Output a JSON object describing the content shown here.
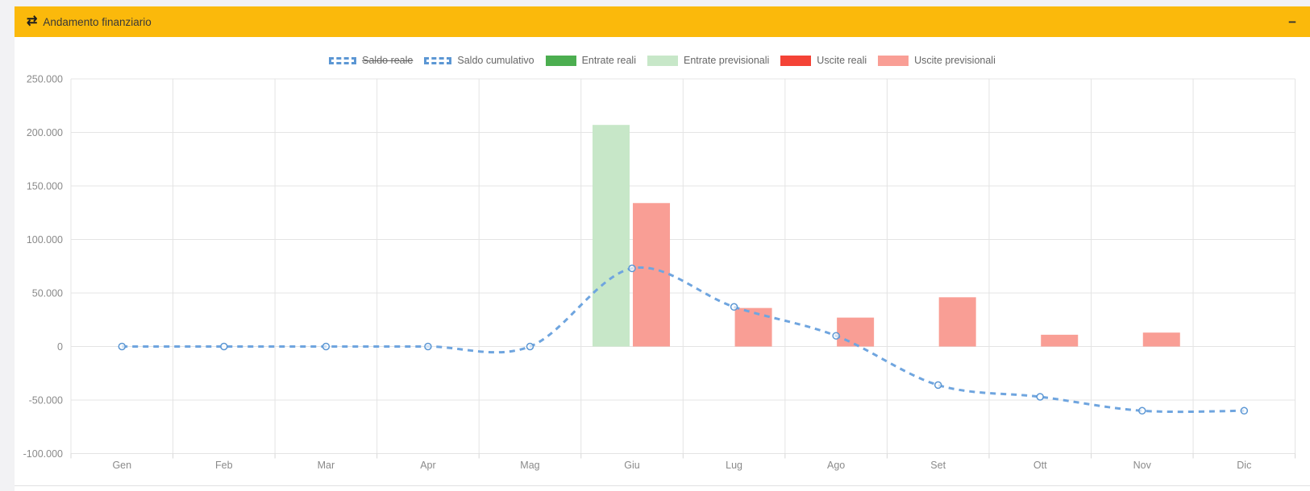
{
  "page": {
    "background": "#F2F2F4"
  },
  "panel": {
    "title": "Andamento finanziario",
    "title_icon": "swap-arrows-icon",
    "title_icon_glyph": "⇄",
    "collapse_label": "−",
    "colors": {
      "header_bg": "#FBB90B",
      "header_text": "#383838"
    }
  },
  "chart_data": {
    "type": "bar+line",
    "categories": [
      "Gen",
      "Feb",
      "Mar",
      "Apr",
      "Mag",
      "Giu",
      "Lug",
      "Ago",
      "Set",
      "Ott",
      "Nov",
      "Dic"
    ],
    "series": [
      {
        "name": "Saldo reale",
        "kind": "line",
        "dashed": true,
        "color": "#6FA5DF",
        "hidden": true,
        "values": null
      },
      {
        "name": "Saldo cumulativo",
        "kind": "line",
        "dashed": true,
        "color": "#6FA5DF",
        "hidden": false,
        "values": [
          0,
          0,
          0,
          0,
          0,
          73000,
          37000,
          10000,
          -36000,
          -47000,
          -60000,
          -60000
        ]
      },
      {
        "name": "Entrate reali",
        "kind": "bar",
        "color": "#4CAE50",
        "hidden": false,
        "values": [
          0,
          0,
          0,
          0,
          0,
          0,
          0,
          0,
          0,
          0,
          0,
          0
        ]
      },
      {
        "name": "Entrate previsionali",
        "kind": "bar",
        "color": "#C7E7C8",
        "hidden": false,
        "values": [
          0,
          0,
          0,
          0,
          0,
          207000,
          0,
          0,
          0,
          0,
          0,
          0
        ]
      },
      {
        "name": "Uscite reali",
        "kind": "bar",
        "color": "#F44336",
        "hidden": false,
        "values": [
          0,
          0,
          0,
          0,
          0,
          0,
          0,
          0,
          0,
          0,
          0,
          0
        ]
      },
      {
        "name": "Uscite previsionali",
        "kind": "bar",
        "color": "#F99E95",
        "hidden": false,
        "values": [
          0,
          0,
          0,
          0,
          0,
          134000,
          36000,
          27000,
          46000,
          11000,
          13000,
          0
        ]
      }
    ],
    "ylim": [
      -100000,
      250000
    ],
    "y_tick_step": 50000,
    "y_tick_labels": [
      "250.000",
      "200.000",
      "150.000",
      "100.000",
      "50.000",
      "0",
      "-50.000",
      "-100.000"
    ],
    "legend_position": "top",
    "grid": true
  }
}
